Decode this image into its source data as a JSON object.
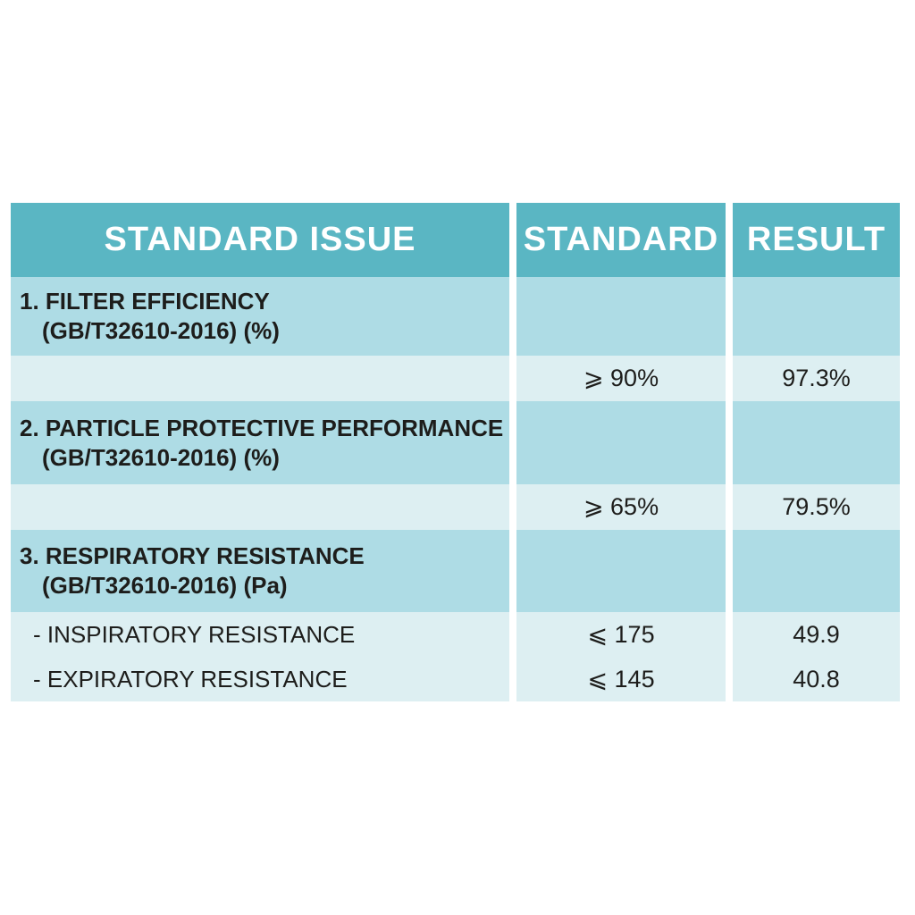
{
  "table": {
    "headers": [
      "STANDARD ISSUE",
      "STANDARD",
      "RESULT"
    ],
    "sections": [
      {
        "title": "1. FILTER EFFICIENCY",
        "subtitle": "(GB/T32610-2016) (%)",
        "standard": "⩾ 90%",
        "result": "97.3%"
      },
      {
        "title": "2. PARTICLE PROTECTIVE PERFORMANCE",
        "subtitle": "(GB/T32610-2016) (%)",
        "standard": "⩾ 65%",
        "result": "79.5%"
      },
      {
        "title": "3. RESPIRATORY RESISTANCE",
        "subtitle": "(GB/T32610-2016) (Pa)",
        "items": [
          {
            "label": "- INSPIRATORY RESISTANCE",
            "standard": "⩽ 175",
            "result": "49.9"
          },
          {
            "label": "- EXPIRATORY RESISTANCE",
            "standard": "⩽ 145",
            "result": "40.8"
          }
        ]
      }
    ],
    "colors": {
      "header_bg": "#5ab6c3",
      "row_medium_bg": "#aedce5",
      "row_light_bg": "#ddeff2",
      "header_text": "#ffffff",
      "body_text": "#1d1d1b",
      "page_bg": "#ffffff"
    }
  },
  "chart_data": {
    "type": "table",
    "columns": [
      "STANDARD ISSUE",
      "STANDARD",
      "RESULT"
    ],
    "rows": [
      [
        "1. FILTER EFFICIENCY (GB/T32610-2016) (%)",
        "⩾ 90%",
        "97.3%"
      ],
      [
        "2. PARTICLE PROTECTIVE PERFORMANCE (GB/T32610-2016) (%)",
        "⩾ 65%",
        "79.5%"
      ],
      [
        "3. RESPIRATORY RESISTANCE (GB/T32610-2016) (Pa) - INSPIRATORY RESISTANCE",
        "⩽ 175",
        "49.9"
      ],
      [
        "3. RESPIRATORY RESISTANCE (GB/T32610-2016) (Pa) - EXPIRATORY RESISTANCE",
        "⩽ 145",
        "40.8"
      ]
    ],
    "title": "",
    "legend": "none",
    "notes": "Mask test-result table: numeric results 97.3, 79.5, 49.9, 40.8 vs standard thresholds 90, 65, 175, 145"
  }
}
